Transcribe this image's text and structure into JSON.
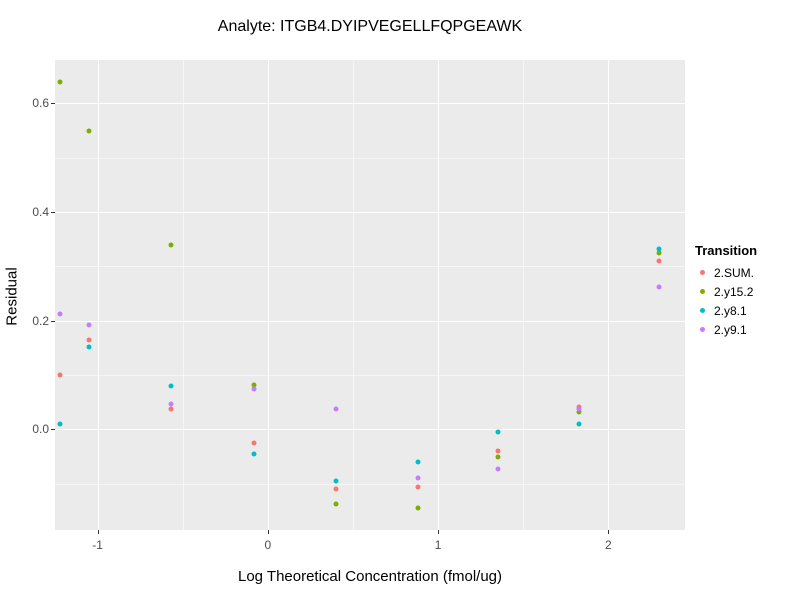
{
  "chart_data": {
    "type": "scatter",
    "title": "Analyte: ITGB4.DYIPVEGELLFQPGEAWK",
    "xlabel": "Log Theoretical Concentration (fmol/ug)",
    "ylabel": "Residual",
    "xlim": [
      -1.25,
      2.45
    ],
    "ylim": [
      -0.185,
      0.68
    ],
    "x_major_ticks": [
      -1,
      0,
      1,
      2
    ],
    "x_tick_labels": [
      "-1",
      "0",
      "1",
      "2"
    ],
    "x_minor_ticks": [
      -0.5,
      0.5,
      1.5
    ],
    "y_major_ticks": [
      0.0,
      0.2,
      0.4,
      0.6
    ],
    "y_tick_labels": [
      "0.0",
      "0.2",
      "0.4",
      "0.6"
    ],
    "y_minor_ticks": [
      -0.1,
      0.1,
      0.3,
      0.5
    ],
    "grid": true,
    "panel_background": "#EBEBEB",
    "legend_position": "right",
    "legend_title": "Transition",
    "series": [
      {
        "name": "2.SUM.",
        "color": "#F8766D",
        "points": [
          [
            -1.22,
            0.1
          ],
          [
            -1.05,
            0.165
          ],
          [
            -0.57,
            0.038
          ],
          [
            -0.08,
            -0.025
          ],
          [
            0.4,
            -0.11
          ],
          [
            0.88,
            -0.105
          ],
          [
            1.35,
            -0.039
          ],
          [
            1.83,
            0.042
          ],
          [
            2.3,
            0.31
          ]
        ]
      },
      {
        "name": "2.y15.2",
        "color": "#7CAE00",
        "points": [
          [
            -1.22,
            0.64
          ],
          [
            -1.05,
            0.55
          ],
          [
            -0.57,
            0.34
          ],
          [
            -0.08,
            0.082
          ],
          [
            0.4,
            -0.138
          ],
          [
            0.88,
            -0.145
          ],
          [
            1.35,
            -0.05
          ],
          [
            1.83,
            0.033
          ],
          [
            2.3,
            0.324
          ]
        ]
      },
      {
        "name": "2.y8.1",
        "color": "#00BFC4",
        "points": [
          [
            -1.22,
            0.01
          ],
          [
            -1.05,
            0.151
          ],
          [
            -0.57,
            0.08
          ],
          [
            -0.08,
            -0.045
          ],
          [
            0.4,
            -0.094
          ],
          [
            0.88,
            -0.06
          ],
          [
            1.35,
            -0.005
          ],
          [
            1.83,
            0.011
          ],
          [
            2.3,
            0.332
          ]
        ]
      },
      {
        "name": "2.y9.1",
        "color": "#C77CFF",
        "points": [
          [
            -1.22,
            0.212
          ],
          [
            -1.05,
            0.192
          ],
          [
            -0.57,
            0.046
          ],
          [
            -0.08,
            0.075
          ],
          [
            0.4,
            0.038
          ],
          [
            0.88,
            -0.09
          ],
          [
            1.35,
            -0.072
          ],
          [
            1.83,
            0.038
          ],
          [
            2.3,
            0.262
          ]
        ]
      }
    ]
  }
}
